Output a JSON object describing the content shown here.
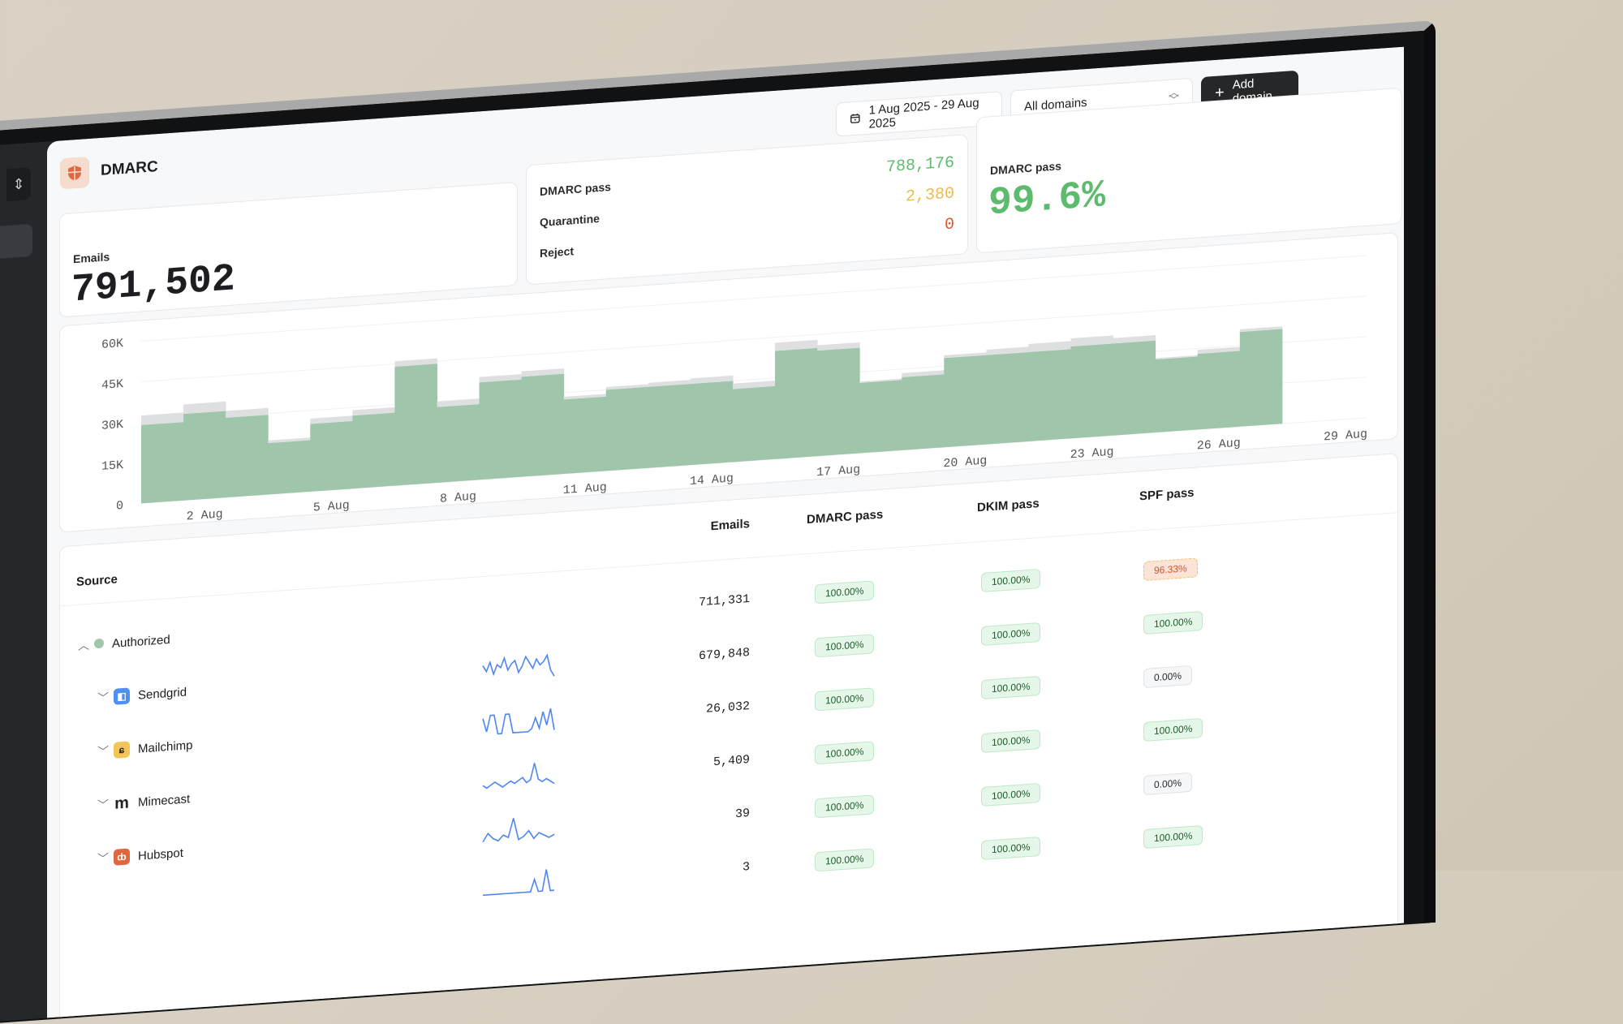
{
  "header": {
    "title": "DMARC",
    "logo_icon": "shield-icon"
  },
  "controls": {
    "date_range": "1 Aug 2025 - 29 Aug 2025",
    "domain_select": "All domains",
    "add_domain": "Add domain"
  },
  "stats": {
    "emails_label": "Emails",
    "emails_value": "791,502",
    "breakdown": [
      {
        "label": "DMARC pass",
        "value": "788,176",
        "color": "#5dbb6e"
      },
      {
        "label": "Quarantine",
        "value": "2,380",
        "color": "#f0b94a"
      },
      {
        "label": "Reject",
        "value": "0",
        "color": "#e0562e"
      }
    ],
    "pass_label": "DMARC pass",
    "pass_value": "99.6%"
  },
  "chart_data": {
    "type": "bar",
    "stacked": true,
    "x_days": [
      1,
      2,
      3,
      4,
      5,
      6,
      7,
      8,
      9,
      10,
      11,
      12,
      13,
      14,
      15,
      16,
      17,
      18,
      19,
      20,
      21,
      22,
      23,
      24,
      25,
      26,
      27
    ],
    "series": [
      {
        "values": [
          29000,
          32000,
          29500,
          19000,
          25000,
          27000,
          44000,
          28000,
          36000,
          37000,
          27500,
          30000,
          30000,
          30000,
          27000,
          40000,
          39000,
          26000,
          27000,
          33000,
          33000,
          33000,
          34000,
          34000,
          27000,
          28000,
          35000
        ],
        "color": "#9fc5aa"
      },
      {
        "values": [
          3500,
          3500,
          2500,
          1000,
          2000,
          2000,
          2000,
          2000,
          2000,
          2000,
          1000,
          1000,
          1500,
          2000,
          2000,
          3000,
          2000,
          500,
          1500,
          1000,
          2000,
          3000,
          3000,
          2000,
          500,
          1500,
          1000
        ],
        "color": "#dedfe1"
      }
    ],
    "x_ticks": [
      "2 Aug",
      "5 Aug",
      "8 Aug",
      "11 Aug",
      "14 Aug",
      "17 Aug",
      "20 Aug",
      "23 Aug",
      "26 Aug",
      "29 Aug"
    ],
    "x_tick_days": [
      2,
      5,
      8,
      11,
      14,
      17,
      20,
      23,
      26,
      29
    ],
    "y_ticks": [
      "0",
      "15K",
      "30K",
      "45K",
      "60K"
    ],
    "ylim": [
      0,
      60000
    ],
    "xlim": [
      1,
      29
    ],
    "grid": true
  },
  "table": {
    "columns": {
      "source": "Source",
      "emails": "Emails",
      "dmarc": "DMARC pass",
      "dkim": "DKIM pass",
      "spf": "SPF pass"
    },
    "rows": [
      {
        "name": "Authorized",
        "expanded": true,
        "icon": "green-dot-icon",
        "emails": "711,331",
        "dmarc": "100.00%",
        "dkim": "100.00%",
        "spf": "96.33%",
        "spf_status": "warn",
        "spark": []
      },
      {
        "name": "Sendgrid",
        "icon": "sendgrid-icon",
        "emails": "679,848",
        "dmarc": "100.00%",
        "dkim": "100.00%",
        "spf": "100.00%",
        "spf_status": "ok",
        "spark": [
          6,
          4,
          7,
          3,
          6,
          5,
          8,
          4,
          6,
          7,
          3,
          5,
          8,
          6,
          4,
          7,
          5,
          6,
          8,
          3,
          1
        ]
      },
      {
        "name": "Mailchimp",
        "icon": "mailchimp-icon",
        "emails": "26,032",
        "dmarc": "100.00%",
        "dkim": "100.00%",
        "spf": "0.00%",
        "spf_status": "zero",
        "spark": [
          7,
          2,
          8,
          8,
          1,
          1,
          8,
          8,
          1,
          1,
          1,
          1,
          1,
          2,
          6,
          2,
          8,
          3,
          9,
          1
        ]
      },
      {
        "name": "Mimecast",
        "icon": "mimecast-icon",
        "emails": "5,409",
        "dmarc": "100.00%",
        "dkim": "100.00%",
        "spf": "100.00%",
        "spf_status": "ok",
        "spark": [
          2,
          1,
          2,
          3,
          2,
          1,
          2,
          3,
          2,
          3,
          4,
          2,
          3,
          9,
          3,
          2,
          3,
          2,
          1
        ]
      },
      {
        "name": "Hubspot",
        "icon": "hubspot-icon",
        "emails": "39",
        "dmarc": "100.00%",
        "dkim": "100.00%",
        "spf": "0.00%",
        "spf_status": "zero",
        "spark": [
          1,
          4,
          2,
          1,
          3,
          2,
          9,
          1,
          2,
          4,
          1,
          3,
          2,
          1,
          2
        ]
      },
      {
        "name": "",
        "icon": "",
        "emails": "3",
        "dmarc": "100.00%",
        "dkim": "100.00%",
        "spf": "100.00%",
        "spf_status": "ok",
        "spark": [
          1,
          1,
          1,
          1,
          1,
          1,
          1,
          1,
          1,
          1,
          1,
          1,
          1,
          5,
          1,
          1,
          8,
          1,
          1
        ]
      }
    ]
  }
}
